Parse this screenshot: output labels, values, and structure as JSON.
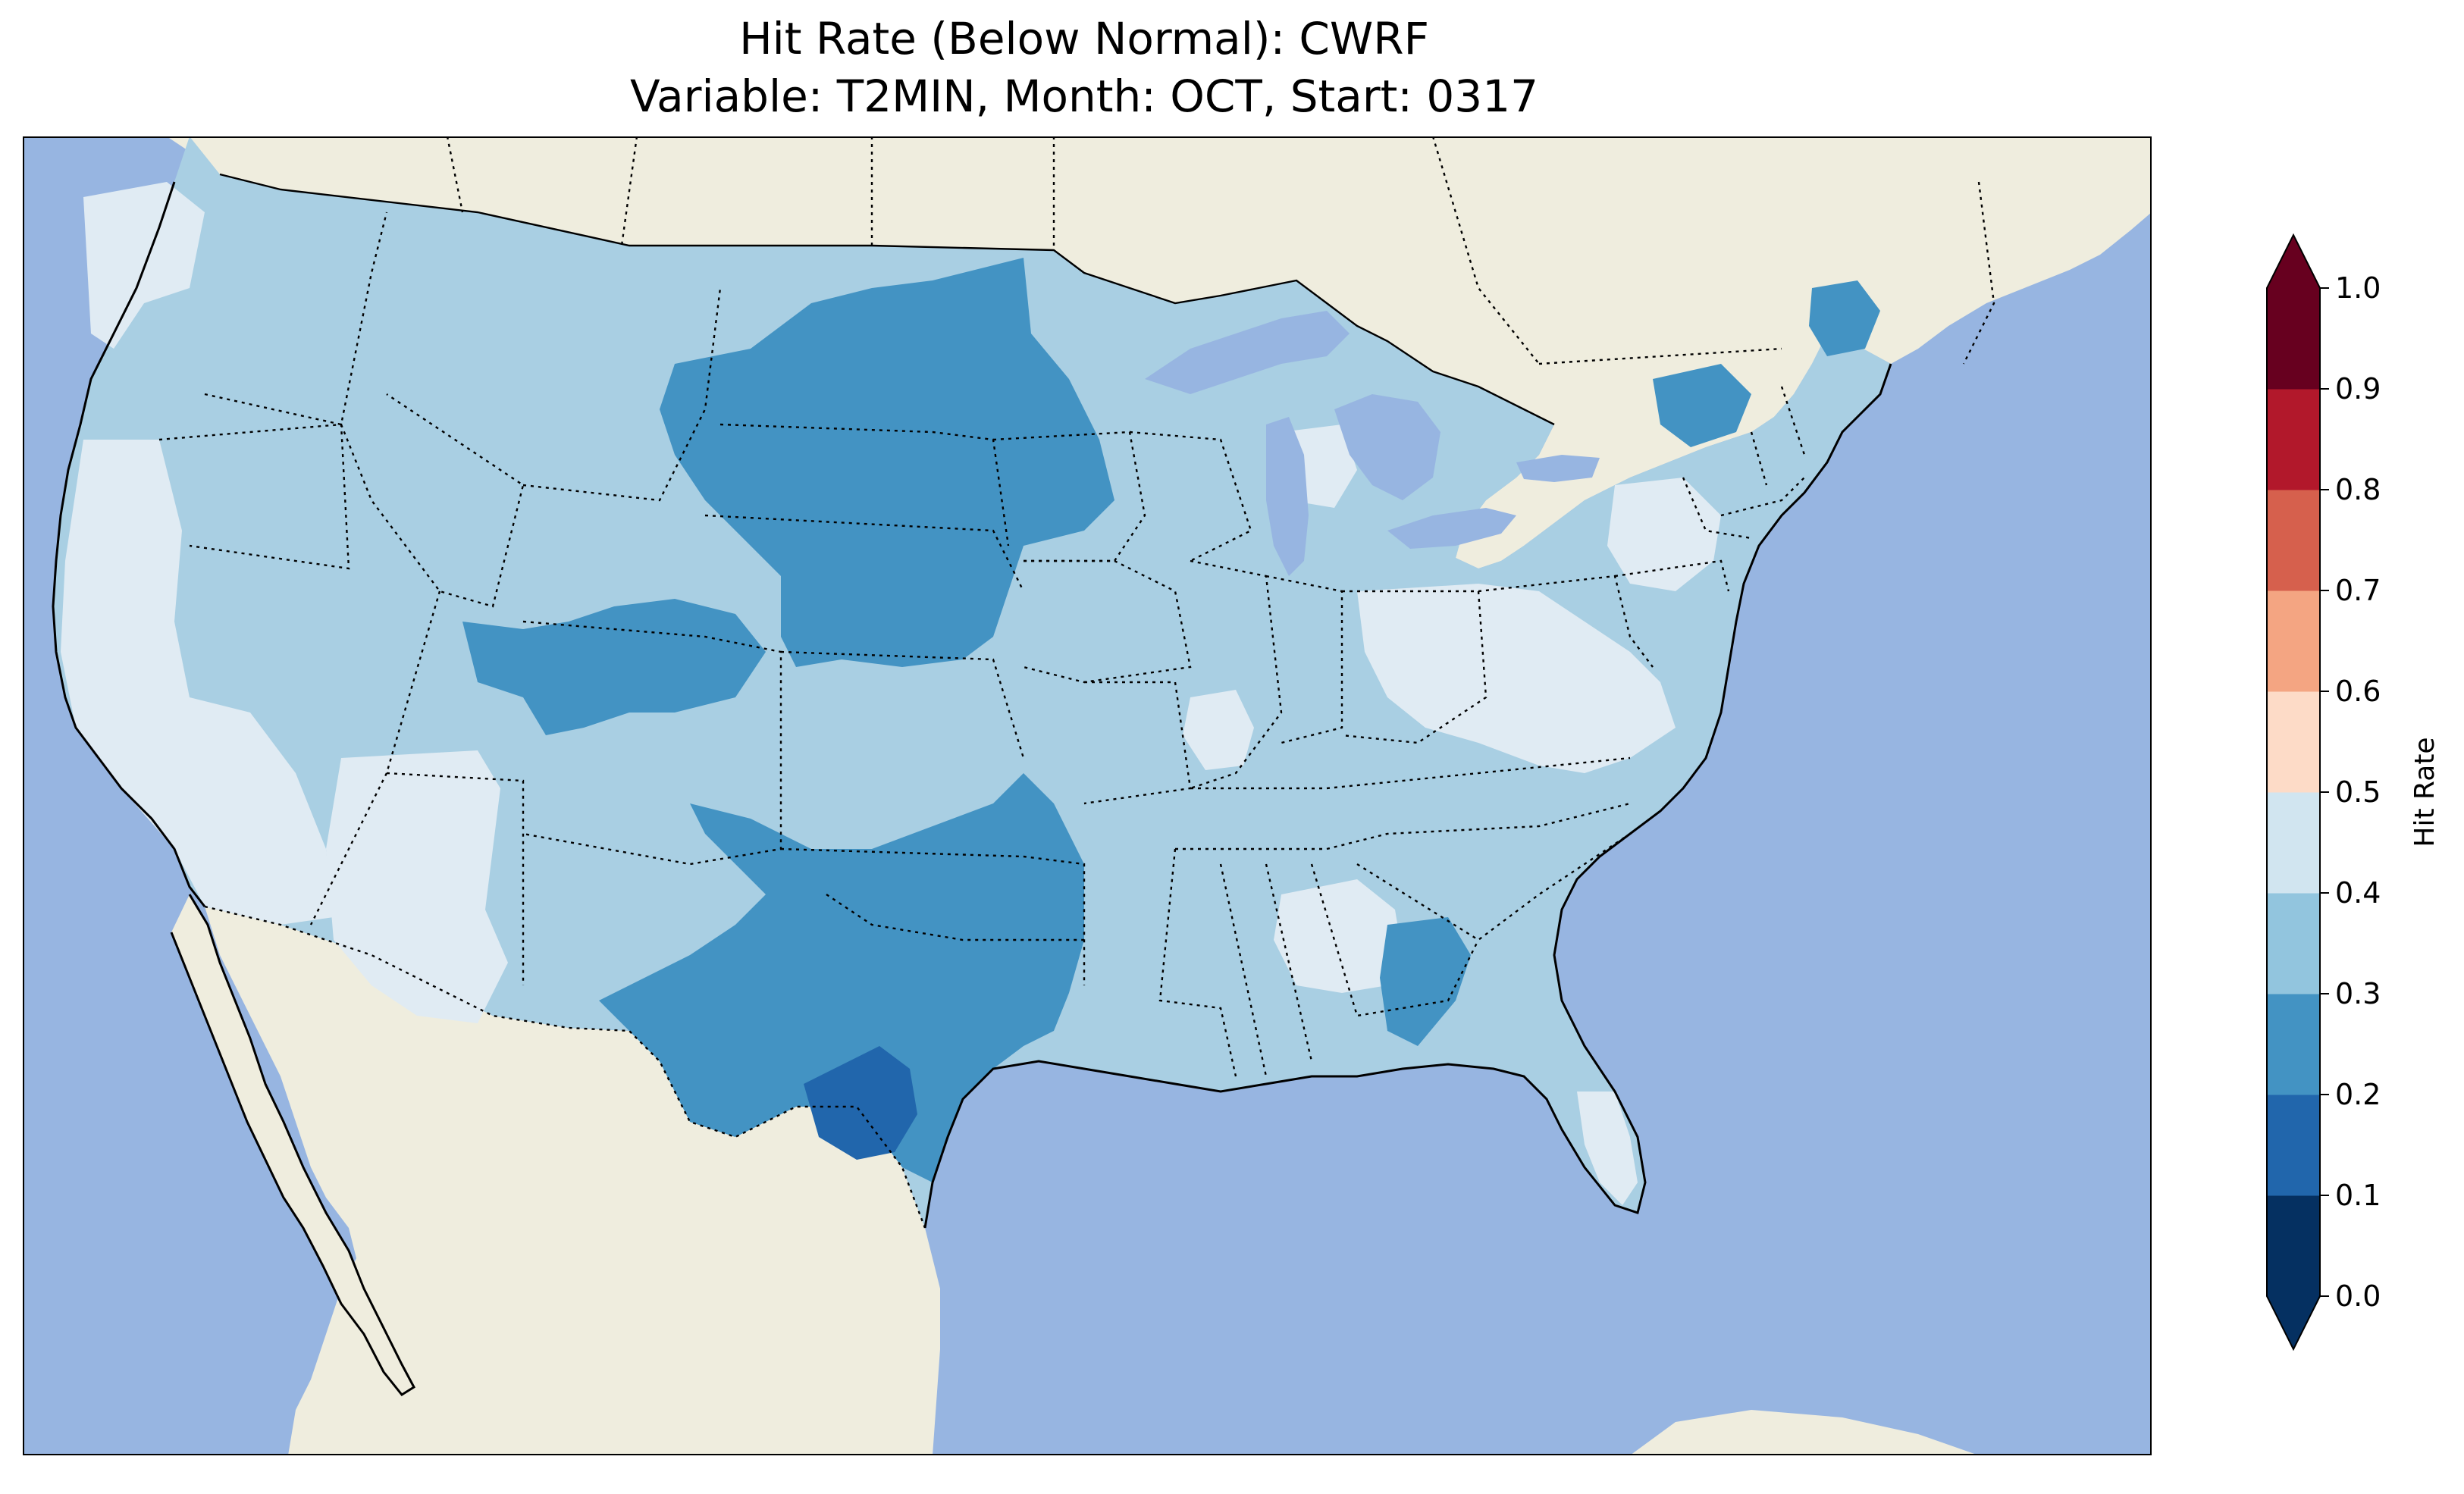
{
  "title": {
    "line1": "Hit Rate (Below Normal): CWRF",
    "line2": "Variable: T2MIN, Month: OCT, Start: 0317"
  },
  "colors": {
    "ocean": "#97b5e1",
    "land": "#efedde",
    "lakes": "#97b5e1",
    "coast": "#000000",
    "state_border": "#000000"
  },
  "colorbar": {
    "label": "Hit Rate",
    "ticks": [
      "0.0",
      "0.1",
      "0.2",
      "0.3",
      "0.4",
      "0.5",
      "0.6",
      "0.7",
      "0.8",
      "0.9",
      "1.0"
    ],
    "bins": [
      {
        "range": [
          0.0,
          0.1
        ],
        "color": "#053061"
      },
      {
        "range": [
          0.1,
          0.2
        ],
        "color": "#2166ac"
      },
      {
        "range": [
          0.2,
          0.3
        ],
        "color": "#4393c3"
      },
      {
        "range": [
          0.3,
          0.4
        ],
        "color": "#92c5de"
      },
      {
        "range": [
          0.4,
          0.5
        ],
        "color": "#d1e5f0"
      },
      {
        "range": [
          0.5,
          0.6
        ],
        "color": "#fddbc7"
      },
      {
        "range": [
          0.6,
          0.7
        ],
        "color": "#f4a582"
      },
      {
        "range": [
          0.7,
          0.8
        ],
        "color": "#d6604d"
      },
      {
        "range": [
          0.8,
          0.9
        ],
        "color": "#b2182b"
      },
      {
        "range": [
          0.9,
          1.0
        ],
        "color": "#67001f"
      }
    ],
    "extend_under_color": "#053061",
    "extend_over_color": "#67001f"
  },
  "map": {
    "region": "Contiguous United States",
    "field_levels_present": [
      "0.1-0.2",
      "0.2-0.3",
      "0.3-0.4",
      "0.4-0.5"
    ],
    "fill_colors": {
      "level_0_1_0_2": "#2166ac",
      "level_0_2_0_3": "#4393c3",
      "level_0_3_0_4": "#a9cfe3",
      "level_0_4_0_5": "#e0ebf3"
    }
  }
}
